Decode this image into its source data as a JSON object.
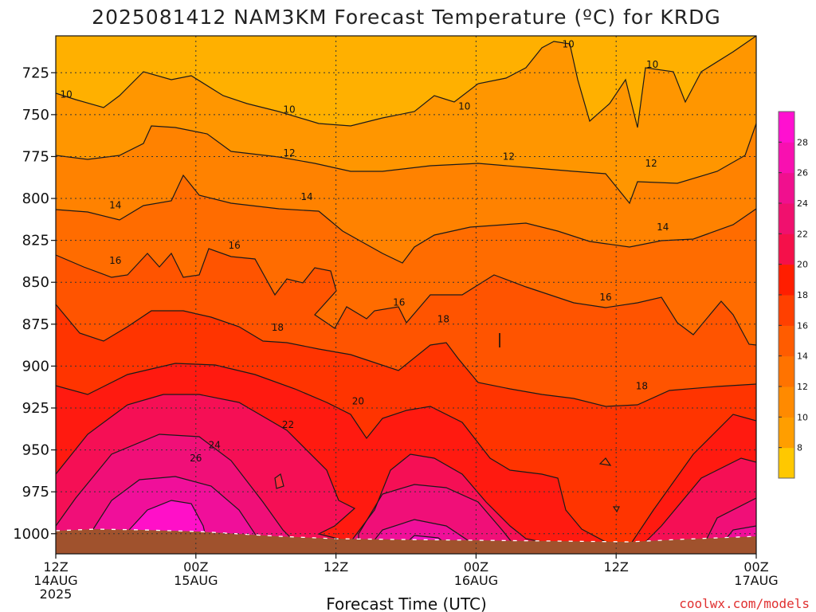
{
  "chart_data": {
    "type": "heatmap",
    "title": "2025081412 NAM3KM Forecast Temperature (ºC) for KRDG",
    "xlabel": "Forecast Time (UTC)",
    "ylabel": "",
    "credit": "coolwx.com/models",
    "y_scale": "pressure (inverted)",
    "ylim": [
      1012,
      703
    ],
    "y_ticks": [
      725,
      750,
      775,
      800,
      825,
      850,
      875,
      900,
      925,
      950,
      975,
      1000
    ],
    "x_ticks": [
      {
        "hour": 0,
        "line1": "12Z",
        "line2": "14AUG",
        "line3": "2025"
      },
      {
        "hour": 12,
        "line1": "00Z",
        "line2": "15AUG",
        "line3": ""
      },
      {
        "hour": 24,
        "line1": "12Z",
        "line2": "",
        "line3": ""
      },
      {
        "hour": 36,
        "line1": "00Z",
        "line2": "16AUG",
        "line3": ""
      },
      {
        "hour": 48,
        "line1": "12Z",
        "line2": "",
        "line3": ""
      },
      {
        "hour": 60,
        "line1": "00Z",
        "line2": "17AUG",
        "line3": ""
      }
    ],
    "xlim_hours": [
      0,
      60
    ],
    "grid": true,
    "colorbar": {
      "levels": [
        8,
        10,
        12,
        14,
        16,
        18,
        20,
        22,
        24,
        26,
        28
      ],
      "colors": [
        "#ffc800",
        "#ff9e00",
        "#ff8a00",
        "#ff7300",
        "#ff5c00",
        "#ff4000",
        "#ff1e00",
        "#f5104a",
        "#f0106e",
        "#f0108e",
        "#f810b0",
        "#ff10d0"
      ],
      "placement": "right"
    },
    "surface_color": "#a0522d",
    "contour_labels": [
      {
        "value": "10",
        "hour": 0.9,
        "p": 738
      },
      {
        "value": "10",
        "hour": 20.0,
        "p": 747
      },
      {
        "value": "10",
        "hour": 35.0,
        "p": 745
      },
      {
        "value": "10",
        "hour": 43.9,
        "p": 708
      },
      {
        "value": "10",
        "hour": 51.1,
        "p": 720
      },
      {
        "value": "12",
        "hour": 20.0,
        "p": 773
      },
      {
        "value": "12",
        "hour": 38.8,
        "p": 775
      },
      {
        "value": "12",
        "hour": 51.0,
        "p": 779
      },
      {
        "value": "14",
        "hour": 5.1,
        "p": 804
      },
      {
        "value": "14",
        "hour": 21.5,
        "p": 799
      },
      {
        "value": "14",
        "hour": 52.0,
        "p": 817
      },
      {
        "value": "16",
        "hour": 5.1,
        "p": 837
      },
      {
        "value": "16",
        "hour": 15.3,
        "p": 828
      },
      {
        "value": "16",
        "hour": 29.4,
        "p": 862
      },
      {
        "value": "16",
        "hour": 47.1,
        "p": 859
      },
      {
        "value": "18",
        "hour": 19.0,
        "p": 877
      },
      {
        "value": "18",
        "hour": 33.2,
        "p": 872
      },
      {
        "value": "18",
        "hour": 50.2,
        "p": 912
      },
      {
        "value": "20",
        "hour": 25.9,
        "p": 921
      },
      {
        "value": "22",
        "hour": 19.9,
        "p": 935
      },
      {
        "value": "24",
        "hour": 13.6,
        "p": 947
      },
      {
        "value": "26",
        "hour": 12.0,
        "p": 955
      }
    ]
  }
}
